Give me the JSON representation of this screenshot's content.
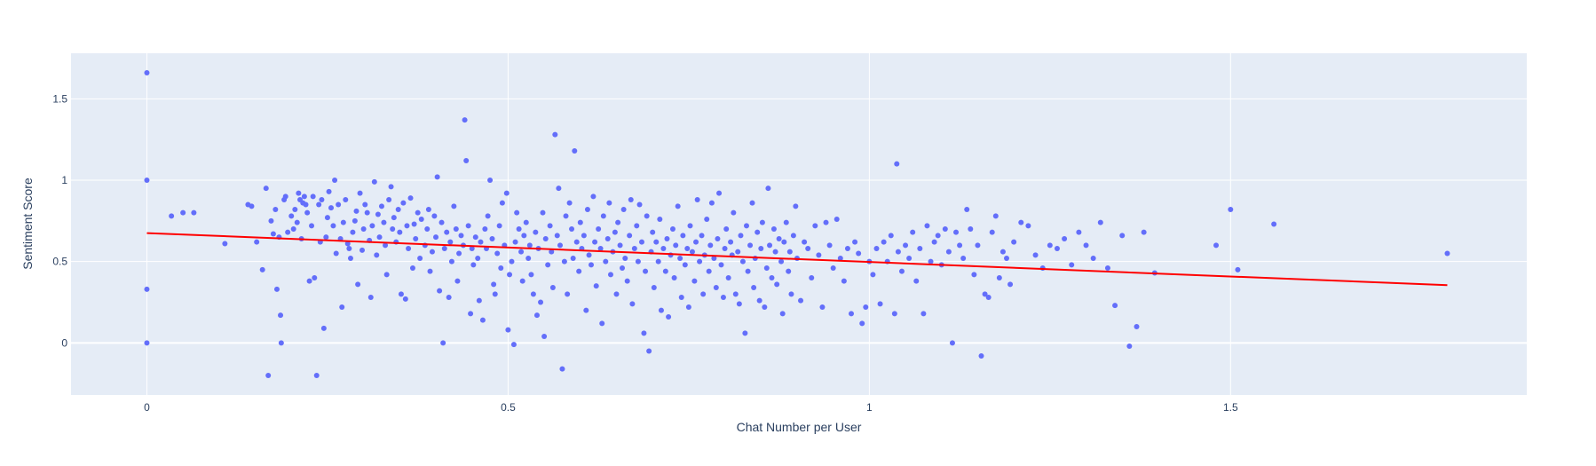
{
  "chart_data": {
    "type": "scatter",
    "xlabel": "Chat Number per User",
    "ylabel": "Sentiment Score",
    "xlim": [
      -0.105,
      1.91
    ],
    "ylim": [
      -0.32,
      1.78
    ],
    "x_ticks": [
      0,
      0.5,
      1,
      1.5
    ],
    "x_tick_labels": [
      "0",
      "0.5",
      "1",
      "1.5"
    ],
    "y_ticks": [
      0,
      0.5,
      1,
      1.5
    ],
    "y_tick_labels": [
      "0",
      "0.5",
      "1",
      "1.5"
    ],
    "grid": true,
    "colors": {
      "points": "#636efa",
      "trendline": "#ff0000",
      "plot_bg": "#e5ecf6",
      "grid": "#ffffff",
      "text": "#2a3f5f"
    },
    "trendline": {
      "x": [
        0,
        1.8
      ],
      "y": [
        0.675,
        0.355
      ]
    },
    "points": [
      [
        0,
        1.66
      ],
      [
        0,
        1.0
      ],
      [
        0,
        0.33
      ],
      [
        0,
        0.0
      ],
      [
        0.034,
        0.78
      ],
      [
        0.05,
        0.8
      ],
      [
        0.065,
        0.8
      ],
      [
        0.108,
        0.61
      ],
      [
        0.14,
        0.85
      ],
      [
        0.145,
        0.84
      ],
      [
        0.152,
        0.62
      ],
      [
        0.16,
        0.45
      ],
      [
        0.165,
        0.95
      ],
      [
        0.168,
        -0.2
      ],
      [
        0.172,
        0.75
      ],
      [
        0.175,
        0.67
      ],
      [
        0.178,
        0.82
      ],
      [
        0.18,
        0.33
      ],
      [
        0.183,
        0.65
      ],
      [
        0.185,
        0.17
      ],
      [
        0.186,
        0.0
      ],
      [
        0.19,
        0.88
      ],
      [
        0.192,
        0.9
      ],
      [
        0.195,
        0.68
      ],
      [
        0.2,
        0.78
      ],
      [
        0.203,
        0.7
      ],
      [
        0.205,
        0.82
      ],
      [
        0.208,
        0.74
      ],
      [
        0.21,
        0.92
      ],
      [
        0.212,
        0.88
      ],
      [
        0.214,
        0.64
      ],
      [
        0.216,
        0.86
      ],
      [
        0.218,
        0.9
      ],
      [
        0.22,
        0.85
      ],
      [
        0.222,
        0.8
      ],
      [
        0.225,
        0.38
      ],
      [
        0.228,
        0.72
      ],
      [
        0.23,
        0.9
      ],
      [
        0.232,
        0.4
      ],
      [
        0.235,
        -0.2
      ],
      [
        0.238,
        0.85
      ],
      [
        0.24,
        0.62
      ],
      [
        0.242,
        0.88
      ],
      [
        0.245,
        0.09
      ],
      [
        0.248,
        0.65
      ],
      [
        0.25,
        0.77
      ],
      [
        0.252,
        0.93
      ],
      [
        0.255,
        0.83
      ],
      [
        0.258,
        0.72
      ],
      [
        0.26,
        1.0
      ],
      [
        0.262,
        0.55
      ],
      [
        0.265,
        0.85
      ],
      [
        0.268,
        0.64
      ],
      [
        0.27,
        0.22
      ],
      [
        0.272,
        0.74
      ],
      [
        0.275,
        0.88
      ],
      [
        0.278,
        0.61
      ],
      [
        0.28,
        0.58
      ],
      [
        0.282,
        0.52
      ],
      [
        0.285,
        0.68
      ],
      [
        0.288,
        0.75
      ],
      [
        0.29,
        0.81
      ],
      [
        0.292,
        0.36
      ],
      [
        0.295,
        0.92
      ],
      [
        0.298,
        0.57
      ],
      [
        0.3,
        0.7
      ],
      [
        0.302,
        0.85
      ],
      [
        0.305,
        0.8
      ],
      [
        0.308,
        0.63
      ],
      [
        0.31,
        0.28
      ],
      [
        0.312,
        0.72
      ],
      [
        0.315,
        0.99
      ],
      [
        0.318,
        0.54
      ],
      [
        0.32,
        0.79
      ],
      [
        0.322,
        0.65
      ],
      [
        0.325,
        0.84
      ],
      [
        0.328,
        0.74
      ],
      [
        0.33,
        0.6
      ],
      [
        0.332,
        0.42
      ],
      [
        0.335,
        0.88
      ],
      [
        0.338,
        0.96
      ],
      [
        0.34,
        0.7
      ],
      [
        0.342,
        0.77
      ],
      [
        0.345,
        0.62
      ],
      [
        0.348,
        0.82
      ],
      [
        0.35,
        0.68
      ],
      [
        0.352,
        0.3
      ],
      [
        0.355,
        0.86
      ],
      [
        0.358,
        0.27
      ],
      [
        0.36,
        0.72
      ],
      [
        0.362,
        0.58
      ],
      [
        0.365,
        0.89
      ],
      [
        0.368,
        0.46
      ],
      [
        0.37,
        0.73
      ],
      [
        0.372,
        0.64
      ],
      [
        0.375,
        0.8
      ],
      [
        0.378,
        0.52
      ],
      [
        0.38,
        0.76
      ],
      [
        0.385,
        0.6
      ],
      [
        0.388,
        0.7
      ],
      [
        0.39,
        0.82
      ],
      [
        0.392,
        0.44
      ],
      [
        0.395,
        0.56
      ],
      [
        0.398,
        0.78
      ],
      [
        0.4,
        0.65
      ],
      [
        0.402,
        1.02
      ],
      [
        0.405,
        0.32
      ],
      [
        0.408,
        0.74
      ],
      [
        0.41,
        0.0
      ],
      [
        0.412,
        0.58
      ],
      [
        0.415,
        0.68
      ],
      [
        0.418,
        0.28
      ],
      [
        0.42,
        0.62
      ],
      [
        0.422,
        0.5
      ],
      [
        0.425,
        0.84
      ],
      [
        0.428,
        0.7
      ],
      [
        0.43,
        0.38
      ],
      [
        0.432,
        0.55
      ],
      [
        0.435,
        0.66
      ],
      [
        0.438,
        0.6
      ],
      [
        0.44,
        1.37
      ],
      [
        0.442,
        1.12
      ],
      [
        0.445,
        0.72
      ],
      [
        0.448,
        0.18
      ],
      [
        0.45,
        0.58
      ],
      [
        0.452,
        0.48
      ],
      [
        0.455,
        0.65
      ],
      [
        0.458,
        0.52
      ],
      [
        0.46,
        0.26
      ],
      [
        0.462,
        0.62
      ],
      [
        0.465,
        0.14
      ],
      [
        0.468,
        0.7
      ],
      [
        0.47,
        0.58
      ],
      [
        0.472,
        0.78
      ],
      [
        0.475,
        1.0
      ],
      [
        0.478,
        0.64
      ],
      [
        0.48,
        0.36
      ],
      [
        0.482,
        0.3
      ],
      [
        0.485,
        0.55
      ],
      [
        0.488,
        0.72
      ],
      [
        0.49,
        0.46
      ],
      [
        0.492,
        0.86
      ],
      [
        0.495,
        0.6
      ],
      [
        0.498,
        0.92
      ],
      [
        0.5,
        0.08
      ],
      [
        0.502,
        0.42
      ],
      [
        0.505,
        0.5
      ],
      [
        0.508,
        -0.01
      ],
      [
        0.51,
        0.62
      ],
      [
        0.512,
        0.8
      ],
      [
        0.515,
        0.7
      ],
      [
        0.518,
        0.56
      ],
      [
        0.52,
        0.38
      ],
      [
        0.522,
        0.66
      ],
      [
        0.525,
        0.74
      ],
      [
        0.528,
        0.52
      ],
      [
        0.53,
        0.6
      ],
      [
        0.532,
        0.42
      ],
      [
        0.535,
        0.3
      ],
      [
        0.538,
        0.68
      ],
      [
        0.54,
        0.17
      ],
      [
        0.542,
        0.58
      ],
      [
        0.545,
        0.25
      ],
      [
        0.548,
        0.8
      ],
      [
        0.55,
        0.04
      ],
      [
        0.552,
        0.64
      ],
      [
        0.555,
        0.48
      ],
      [
        0.558,
        0.72
      ],
      [
        0.56,
        0.56
      ],
      [
        0.562,
        0.34
      ],
      [
        0.565,
        1.28
      ],
      [
        0.568,
        0.66
      ],
      [
        0.57,
        0.95
      ],
      [
        0.572,
        0.6
      ],
      [
        0.575,
        -0.16
      ],
      [
        0.578,
        0.5
      ],
      [
        0.58,
        0.78
      ],
      [
        0.582,
        0.3
      ],
      [
        0.585,
        0.86
      ],
      [
        0.588,
        0.7
      ],
      [
        0.59,
        0.52
      ],
      [
        0.592,
        1.18
      ],
      [
        0.595,
        0.62
      ],
      [
        0.598,
        0.44
      ],
      [
        0.6,
        0.74
      ],
      [
        0.602,
        0.58
      ],
      [
        0.605,
        0.66
      ],
      [
        0.608,
        0.2
      ],
      [
        0.61,
        0.82
      ],
      [
        0.612,
        0.54
      ],
      [
        0.615,
        0.48
      ],
      [
        0.618,
        0.9
      ],
      [
        0.62,
        0.62
      ],
      [
        0.622,
        0.35
      ],
      [
        0.625,
        0.7
      ],
      [
        0.628,
        0.58
      ],
      [
        0.63,
        0.12
      ],
      [
        0.632,
        0.78
      ],
      [
        0.635,
        0.5
      ],
      [
        0.638,
        0.64
      ],
      [
        0.64,
        0.86
      ],
      [
        0.642,
        0.42
      ],
      [
        0.645,
        0.56
      ],
      [
        0.648,
        0.68
      ],
      [
        0.65,
        0.3
      ],
      [
        0.652,
        0.74
      ],
      [
        0.655,
        0.6
      ],
      [
        0.658,
        0.46
      ],
      [
        0.66,
        0.82
      ],
      [
        0.662,
        0.52
      ],
      [
        0.665,
        0.38
      ],
      [
        0.668,
        0.66
      ],
      [
        0.67,
        0.88
      ],
      [
        0.672,
        0.24
      ],
      [
        0.675,
        0.58
      ],
      [
        0.678,
        0.72
      ],
      [
        0.68,
        0.5
      ],
      [
        0.682,
        0.85
      ],
      [
        0.685,
        0.62
      ],
      [
        0.688,
        0.06
      ],
      [
        0.69,
        0.44
      ],
      [
        0.692,
        0.78
      ],
      [
        0.695,
        -0.05
      ],
      [
        0.698,
        0.56
      ],
      [
        0.7,
        0.68
      ],
      [
        0.702,
        0.34
      ],
      [
        0.705,
        0.62
      ],
      [
        0.708,
        0.5
      ],
      [
        0.71,
        0.76
      ],
      [
        0.712,
        0.2
      ],
      [
        0.715,
        0.58
      ],
      [
        0.718,
        0.44
      ],
      [
        0.72,
        0.64
      ],
      [
        0.722,
        0.16
      ],
      [
        0.725,
        0.54
      ],
      [
        0.728,
        0.7
      ],
      [
        0.73,
        0.4
      ],
      [
        0.732,
        0.6
      ],
      [
        0.735,
        0.84
      ],
      [
        0.738,
        0.52
      ],
      [
        0.74,
        0.28
      ],
      [
        0.742,
        0.66
      ],
      [
        0.745,
        0.48
      ],
      [
        0.748,
        0.58
      ],
      [
        0.75,
        0.22
      ],
      [
        0.752,
        0.72
      ],
      [
        0.755,
        0.56
      ],
      [
        0.758,
        0.38
      ],
      [
        0.76,
        0.62
      ],
      [
        0.762,
        0.88
      ],
      [
        0.765,
        0.5
      ],
      [
        0.768,
        0.66
      ],
      [
        0.77,
        0.3
      ],
      [
        0.772,
        0.54
      ],
      [
        0.775,
        0.76
      ],
      [
        0.778,
        0.44
      ],
      [
        0.78,
        0.6
      ],
      [
        0.782,
        0.86
      ],
      [
        0.785,
        0.52
      ],
      [
        0.788,
        0.34
      ],
      [
        0.79,
        0.64
      ],
      [
        0.792,
        0.92
      ],
      [
        0.795,
        0.48
      ],
      [
        0.798,
        0.28
      ],
      [
        0.8,
        0.58
      ],
      [
        0.802,
        0.7
      ],
      [
        0.805,
        0.4
      ],
      [
        0.808,
        0.62
      ],
      [
        0.81,
        0.54
      ],
      [
        0.812,
        0.8
      ],
      [
        0.815,
        0.3
      ],
      [
        0.818,
        0.56
      ],
      [
        0.82,
        0.24
      ],
      [
        0.822,
        0.66
      ],
      [
        0.825,
        0.5
      ],
      [
        0.828,
        0.06
      ],
      [
        0.83,
        0.72
      ],
      [
        0.832,
        0.44
      ],
      [
        0.835,
        0.6
      ],
      [
        0.838,
        0.86
      ],
      [
        0.84,
        0.34
      ],
      [
        0.842,
        0.52
      ],
      [
        0.845,
        0.68
      ],
      [
        0.848,
        0.26
      ],
      [
        0.85,
        0.58
      ],
      [
        0.852,
        0.74
      ],
      [
        0.855,
        0.22
      ],
      [
        0.858,
        0.46
      ],
      [
        0.86,
        0.95
      ],
      [
        0.862,
        0.6
      ],
      [
        0.865,
        0.4
      ],
      [
        0.868,
        0.7
      ],
      [
        0.87,
        0.56
      ],
      [
        0.872,
        0.36
      ],
      [
        0.875,
        0.64
      ],
      [
        0.878,
        0.5
      ],
      [
        0.88,
        0.18
      ],
      [
        0.882,
        0.62
      ],
      [
        0.885,
        0.74
      ],
      [
        0.888,
        0.44
      ],
      [
        0.89,
        0.56
      ],
      [
        0.892,
        0.3
      ],
      [
        0.895,
        0.66
      ],
      [
        0.898,
        0.84
      ],
      [
        0.9,
        0.52
      ],
      [
        0.905,
        0.26
      ],
      [
        0.91,
        0.62
      ],
      [
        0.915,
        0.58
      ],
      [
        0.92,
        0.4
      ],
      [
        0.925,
        0.72
      ],
      [
        0.93,
        0.54
      ],
      [
        0.935,
        0.22
      ],
      [
        0.94,
        0.74
      ],
      [
        0.945,
        0.6
      ],
      [
        0.95,
        0.46
      ],
      [
        0.955,
        0.76
      ],
      [
        0.96,
        0.52
      ],
      [
        0.965,
        0.38
      ],
      [
        0.97,
        0.58
      ],
      [
        0.975,
        0.18
      ],
      [
        0.98,
        0.62
      ],
      [
        0.985,
        0.55
      ],
      [
        0.99,
        0.12
      ],
      [
        0.995,
        0.22
      ],
      [
        1.0,
        0.5
      ],
      [
        1.005,
        0.42
      ],
      [
        1.01,
        0.58
      ],
      [
        1.015,
        0.24
      ],
      [
        1.02,
        0.62
      ],
      [
        1.025,
        0.5
      ],
      [
        1.03,
        0.66
      ],
      [
        1.035,
        0.18
      ],
      [
        1.038,
        1.1
      ],
      [
        1.04,
        0.56
      ],
      [
        1.045,
        0.44
      ],
      [
        1.05,
        0.6
      ],
      [
        1.055,
        0.52
      ],
      [
        1.06,
        0.68
      ],
      [
        1.065,
        0.38
      ],
      [
        1.07,
        0.58
      ],
      [
        1.075,
        0.18
      ],
      [
        1.08,
        0.72
      ],
      [
        1.085,
        0.5
      ],
      [
        1.09,
        0.62
      ],
      [
        1.095,
        0.66
      ],
      [
        1.1,
        0.48
      ],
      [
        1.105,
        0.7
      ],
      [
        1.11,
        0.56
      ],
      [
        1.115,
        0.0
      ],
      [
        1.12,
        0.68
      ],
      [
        1.125,
        0.6
      ],
      [
        1.13,
        0.52
      ],
      [
        1.135,
        0.82
      ],
      [
        1.14,
        0.7
      ],
      [
        1.145,
        0.42
      ],
      [
        1.15,
        0.6
      ],
      [
        1.155,
        -0.08
      ],
      [
        1.16,
        0.3
      ],
      [
        1.165,
        0.28
      ],
      [
        1.17,
        0.68
      ],
      [
        1.175,
        0.78
      ],
      [
        1.18,
        0.4
      ],
      [
        1.185,
        0.56
      ],
      [
        1.19,
        0.52
      ],
      [
        1.195,
        0.36
      ],
      [
        1.2,
        0.62
      ],
      [
        1.21,
        0.74
      ],
      [
        1.22,
        0.72
      ],
      [
        1.23,
        0.54
      ],
      [
        1.24,
        0.46
      ],
      [
        1.25,
        0.6
      ],
      [
        1.26,
        0.58
      ],
      [
        1.27,
        0.64
      ],
      [
        1.28,
        0.48
      ],
      [
        1.29,
        0.68
      ],
      [
        1.3,
        0.6
      ],
      [
        1.31,
        0.52
      ],
      [
        1.32,
        0.74
      ],
      [
        1.33,
        0.46
      ],
      [
        1.34,
        0.23
      ],
      [
        1.35,
        0.66
      ],
      [
        1.36,
        -0.02
      ],
      [
        1.37,
        0.1
      ],
      [
        1.38,
        0.68
      ],
      [
        1.395,
        0.43
      ],
      [
        1.48,
        0.6
      ],
      [
        1.5,
        0.82
      ],
      [
        1.51,
        0.45
      ],
      [
        1.56,
        0.73
      ],
      [
        1.8,
        0.55
      ]
    ]
  }
}
